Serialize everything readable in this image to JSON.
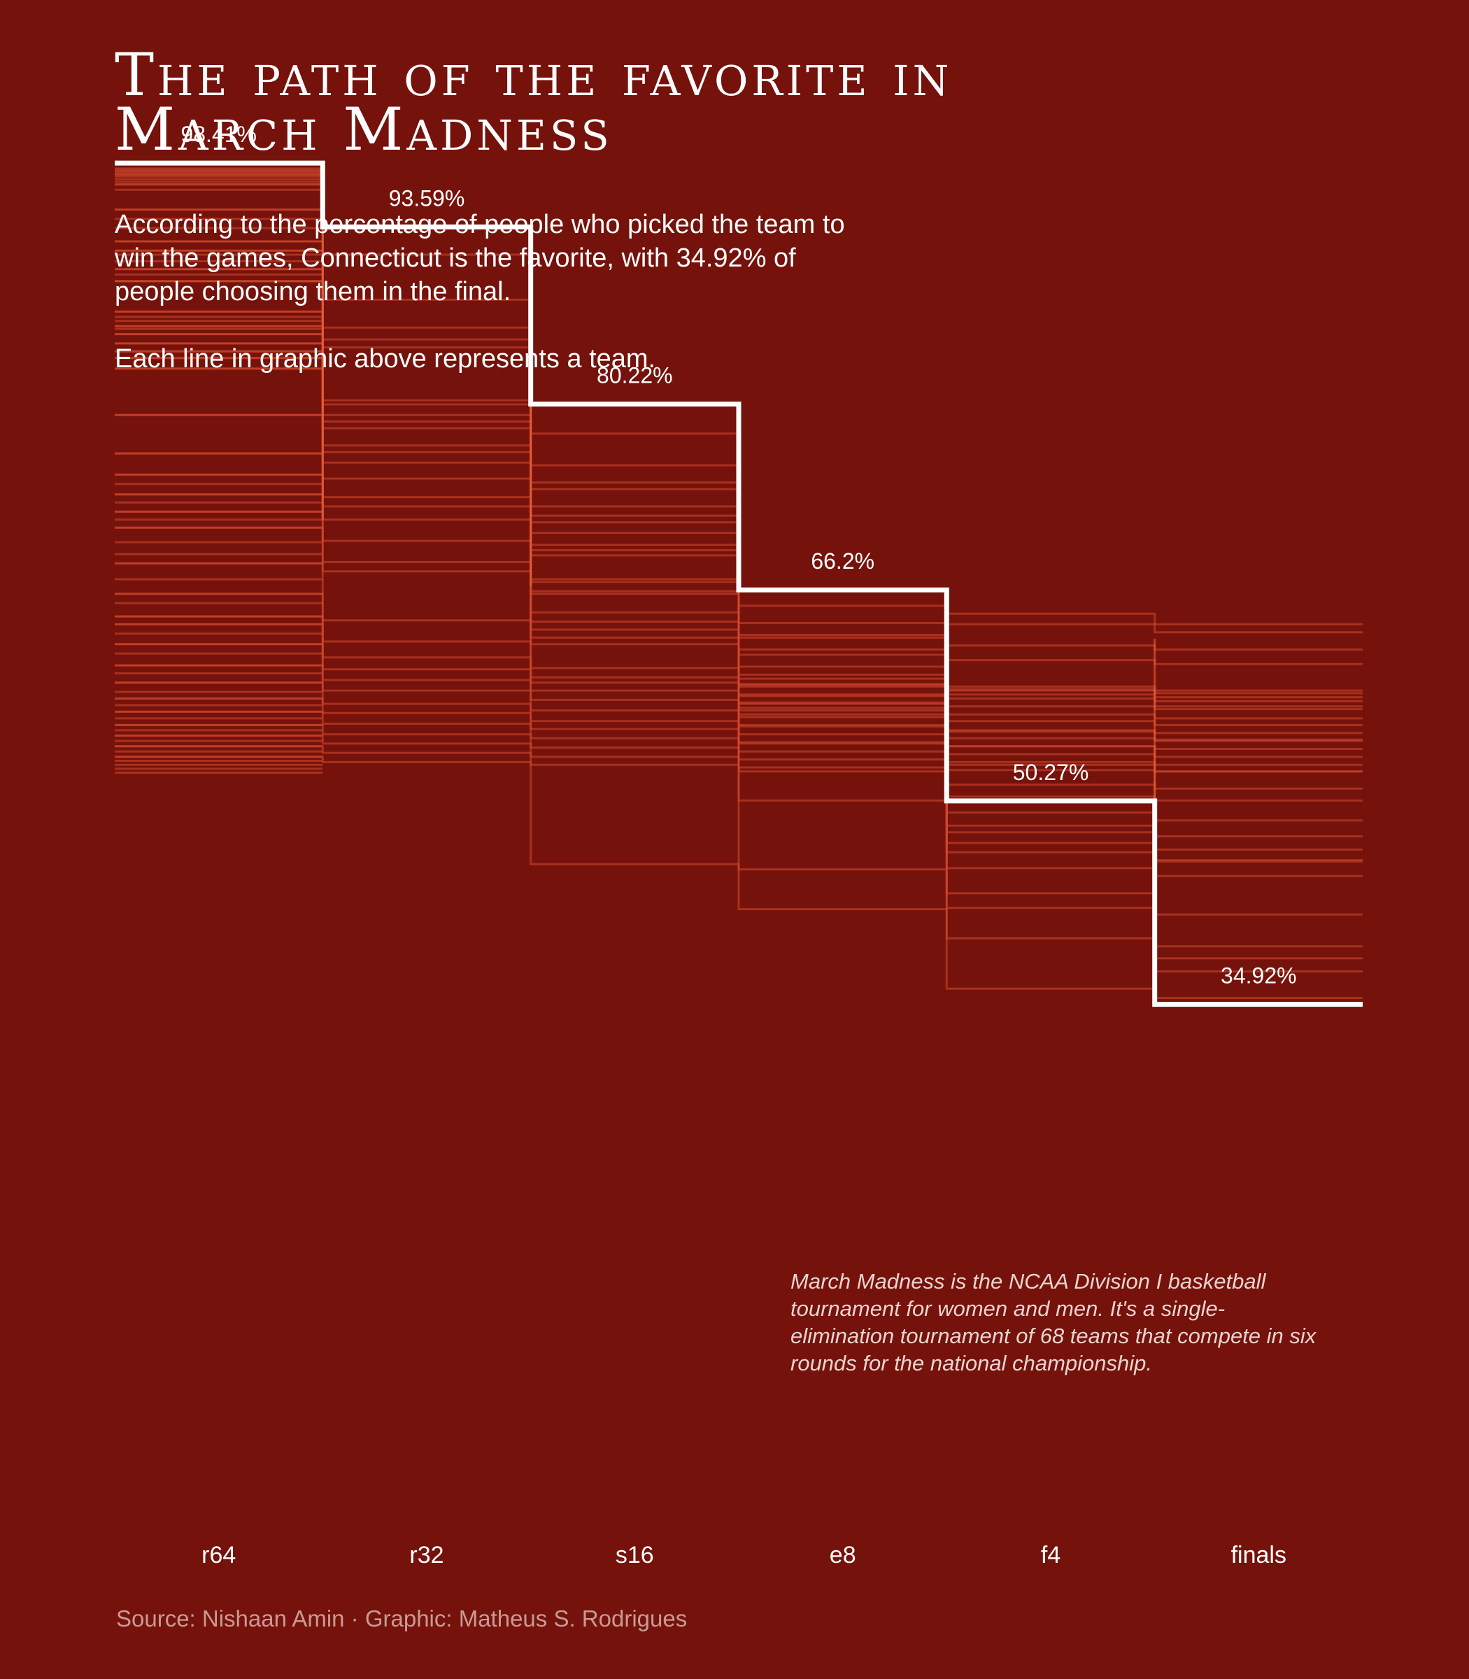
{
  "header": {
    "title_line1": "The path of the favorite in",
    "title_line2": "March Madness",
    "subtitle": "According to the percentage of people who picked the team to win the games, Connecticut is the favorite, with 34.92% of people choosing them in the final.",
    "note": "Each line in graphic above represents a team."
  },
  "annotation": "March Madness is the NCAA Division I basketball tournament for women and men. It's a single-elimination tournament of 68 teams that compete in six rounds for the national championship.",
  "caption": "Source: Nishaan Amin · Graphic: Matheus S. Rodrigues",
  "colors": {
    "background": "#75120b",
    "favorite_line": "#ffffff",
    "team_lines": "#d2492f",
    "connector_lines": "#f06a3c"
  },
  "chart_data": {
    "type": "line",
    "step": true,
    "categories": [
      "r64",
      "r32",
      "s16",
      "e8",
      "f4",
      "finals"
    ],
    "ylim": [
      0,
      100
    ],
    "xlabel": "",
    "ylabel": "",
    "grid": false,
    "legend": false,
    "favorite": {
      "values": [
        98.41,
        93.59,
        80.22,
        66.2,
        50.27,
        34.92
      ],
      "labels": [
        "98.41%",
        "93.59%",
        "80.22%",
        "66.2%",
        "50.27%",
        "34.92%"
      ]
    },
    "r64_values": [
      98.0,
      97.9,
      97.8,
      97.7,
      97.6,
      97.5,
      97.4,
      97.2,
      97.0,
      96.8,
      96.4,
      94.9,
      94.2,
      93.5,
      92.5,
      91.8,
      91.5,
      91.0,
      90.4,
      90.0,
      89.5,
      87.2,
      86.8,
      86.5,
      86.1,
      85.9,
      85.5,
      84.8,
      84.2,
      83.7,
      82.9,
      79.4,
      76.5,
      74.9,
      74.2,
      73.4,
      72.8,
      72.1,
      71.5,
      70.9,
      69.8,
      68.9,
      68.2,
      67.0,
      65.9,
      65.2,
      64.2,
      63.6,
      62.9,
      62.1,
      61.4,
      60.5,
      59.9,
      59.2,
      58.5,
      58.0,
      57.5,
      57.0,
      56.5,
      56.0,
      55.6,
      55.2,
      54.8,
      54.4,
      54.0,
      53.6,
      53.3,
      53.0,
      52.7,
      52.4
    ],
    "team_paths": [
      [
        86.1,
        75.8,
        45.5,
        42.1,
        36.1,
        35.4
      ],
      [
        83.7,
        80.2,
        72.5,
        50.3,
        42.2,
        37.4
      ],
      [
        91.8,
        86.0,
        75.6,
        52.5,
        43.3,
        39.3
      ],
      [
        87.2,
        72.5,
        63.2,
        45.1,
        39.9,
        38.4
      ],
      [
        96.8,
        91.5,
        78.0,
        56.0,
        45.2,
        41.7
      ],
      [
        94.9,
        88.1,
        70.5,
        54.6,
        48.4,
        45.8
      ],
      [
        90.4,
        78.9,
        66.8,
        58.2,
        46.4,
        44.6
      ],
      [
        82.9,
        74.6,
        62.6,
        56.8,
        47.9,
        46.6
      ],
      [
        92.5,
        84.5,
        74.3,
        57.3,
        49.4,
        47.6
      ],
      [
        85.5,
        80.5,
        69.6,
        59.0,
        50.6,
        48.8
      ],
      [
        89.5,
        79.4,
        73.8,
        57.6,
        47.1,
        45.7
      ],
      [
        84.8,
        78.4,
        63.8,
        59.8,
        51.5,
        50.3
      ],
      [
        89.5,
        85.1,
        71.8,
        61.3,
        53.0,
        51.2
      ],
      [
        84.2,
        77.1,
        65.9,
        62.8,
        54.4,
        52.5
      ],
      [
        79.4,
        76.6,
        71.3,
        63.7,
        55.5,
        54.9
      ],
      [
        76.5,
        69.9,
        64.5,
        60.4,
        58.3,
        57.4
      ],
      [
        74.9,
        73.2,
        68.8,
        66.3,
        64.4,
        63.6
      ],
      [
        73.4,
        71.5,
        69.2,
        65.0,
        63.6,
        63.0
      ],
      [
        72.1,
        68.3,
        67.0,
        62.6,
        62.0,
        61.7
      ],
      [
        70.9,
        67.6,
        66.1,
        61.7,
        60.9,
        60.6
      ],
      [
        68.2,
        63.9,
        62.1,
        59.5,
        58.6,
        58.1
      ],
      [
        65.9,
        62.3,
        60.3,
        59.1,
        58.9,
        58.6
      ],
      [
        64.2,
        61.1,
        59.6,
        58.9,
        58.7,
        58.4
      ],
      [
        63.6,
        60.2,
        59.2,
        58.3,
        58.0,
        57.8
      ],
      [
        62.1,
        59.4,
        58.6,
        57.7,
        57.4,
        57.2
      ],
      [
        60.5,
        58.6,
        57.9,
        57.1,
        56.8,
        56.5
      ],
      [
        59.2,
        57.6,
        57.1,
        56.6,
        56.3,
        56.0
      ],
      [
        58.0,
        56.9,
        56.3,
        55.9,
        55.6,
        55.4
      ],
      [
        57.0,
        56.1,
        55.7,
        55.3,
        55.0,
        54.8
      ],
      [
        56.0,
        55.3,
        55.0,
        54.7,
        54.4,
        54.2
      ],
      [
        55.2,
        54.6,
        54.3,
        54.0,
        53.8,
        53.6
      ],
      [
        54.4,
        53.9,
        53.6,
        53.4,
        53.2,
        53.0
      ],
      [
        53.6,
        53.2,
        53.0,
        52.8,
        52.6,
        52.5
      ]
    ]
  }
}
